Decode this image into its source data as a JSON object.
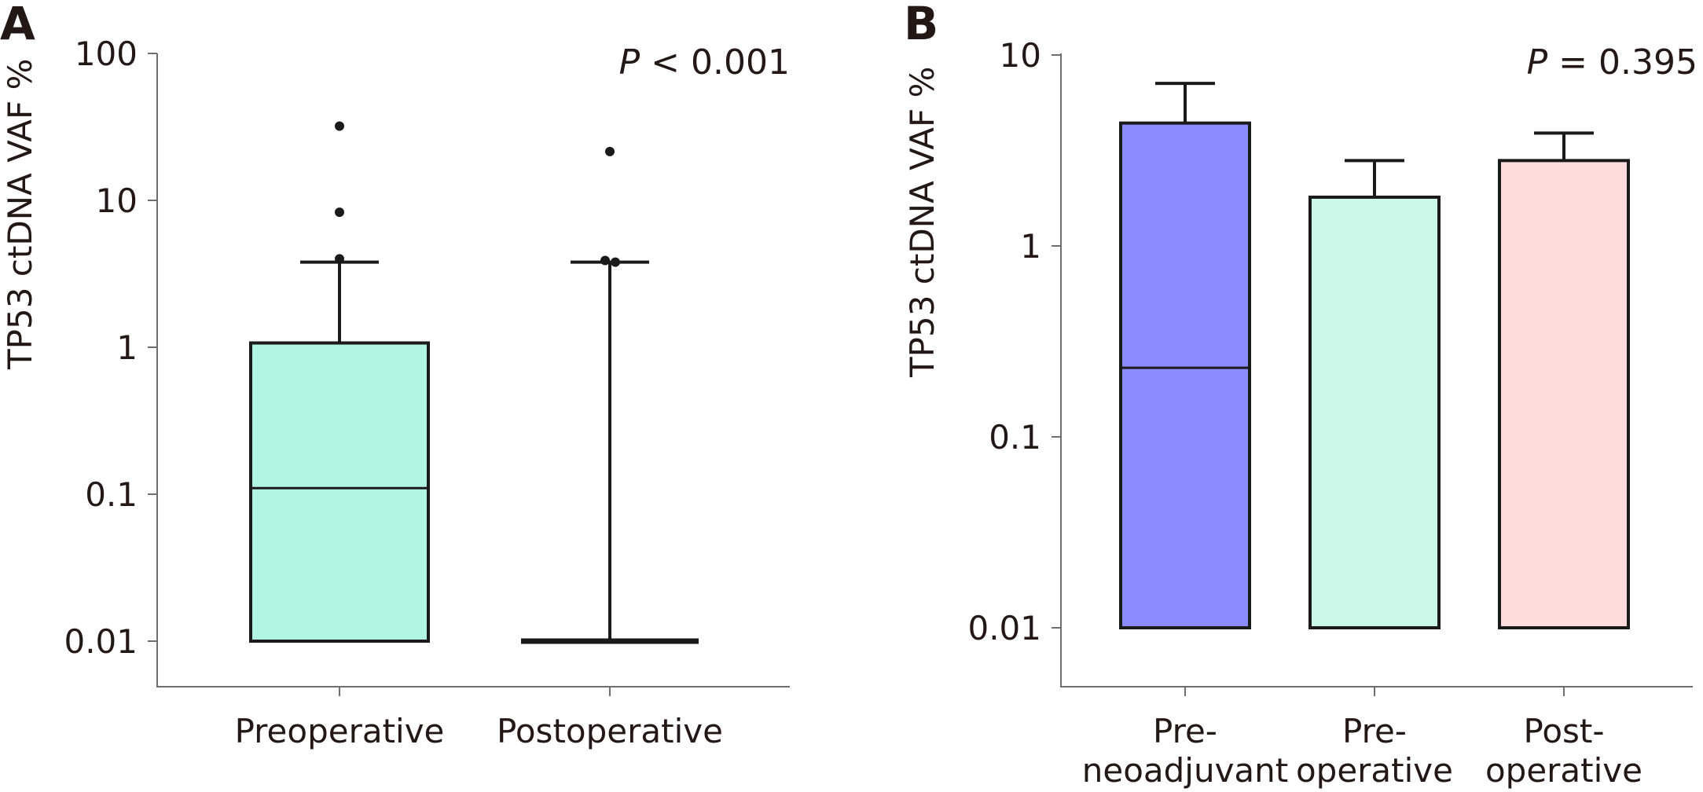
{
  "chart_data": [
    {
      "panel": "A",
      "type": "box",
      "xlabel": "",
      "ylabel": "TP53 ctDNA VAF %",
      "yscale": "log",
      "ylim": [
        0.01,
        100
      ],
      "yticks": [
        {
          "value": 100,
          "label": "100"
        },
        {
          "value": 10,
          "label": "10"
        },
        {
          "value": 1,
          "label": "1"
        },
        {
          "value": 0.1,
          "label": "0.1"
        },
        {
          "value": 0.01,
          "label": "0.01"
        }
      ],
      "annotation": {
        "prefix": "P",
        "text": " < 0.001"
      },
      "categories": [
        "Preoperative",
        "Postoperative"
      ],
      "boxes": [
        {
          "category": "Preoperative",
          "min": 0.01,
          "q1": 0.01,
          "median": 0.11,
          "q3": 1.07,
          "whisker_high": 3.8,
          "outliers": [
            32,
            8.3,
            4.0
          ],
          "color": "#b1f4df"
        },
        {
          "category": "Postoperative",
          "min": 0.01,
          "q1": 0.01,
          "median": 0.01,
          "q3": 0.01,
          "whisker_high": 3.8,
          "outliers": [
            21.5,
            3.9,
            3.8
          ],
          "color": "#b1f4df"
        }
      ],
      "grid": false
    },
    {
      "panel": "B",
      "type": "bar",
      "xlabel": "",
      "ylabel": "TP53 ctDNA VAF %",
      "yscale": "log",
      "ylim": [
        0.01,
        10
      ],
      "yticks": [
        {
          "value": 10,
          "label": "10"
        },
        {
          "value": 1,
          "label": "1"
        },
        {
          "value": 0.1,
          "label": "0.1"
        },
        {
          "value": 0.01,
          "label": "0.01"
        }
      ],
      "annotation": {
        "prefix": "P",
        "text": " = 0.395"
      },
      "categories": [
        {
          "line1": "Pre-",
          "line2": "neoadjuvant"
        },
        {
          "line1": "Pre-",
          "line2": "operative"
        },
        {
          "line1": "Post-",
          "line2": "operative"
        }
      ],
      "boxes": [
        {
          "category": "Pre-neoadjuvant",
          "min": 0.01,
          "median": 0.23,
          "q3": 4.4,
          "whisker_high": 7.1,
          "color": "#8a8cff"
        },
        {
          "category": "Pre-operative",
          "min": 0.01,
          "median": 0.01,
          "q3": 1.8,
          "whisker_high": 2.8,
          "color": "#ccf7e8"
        },
        {
          "category": "Post-operative",
          "min": 0.01,
          "median": 0.01,
          "q3": 2.8,
          "whisker_high": 3.9,
          "color": "#ffdcdc"
        }
      ],
      "grid": false
    }
  ]
}
